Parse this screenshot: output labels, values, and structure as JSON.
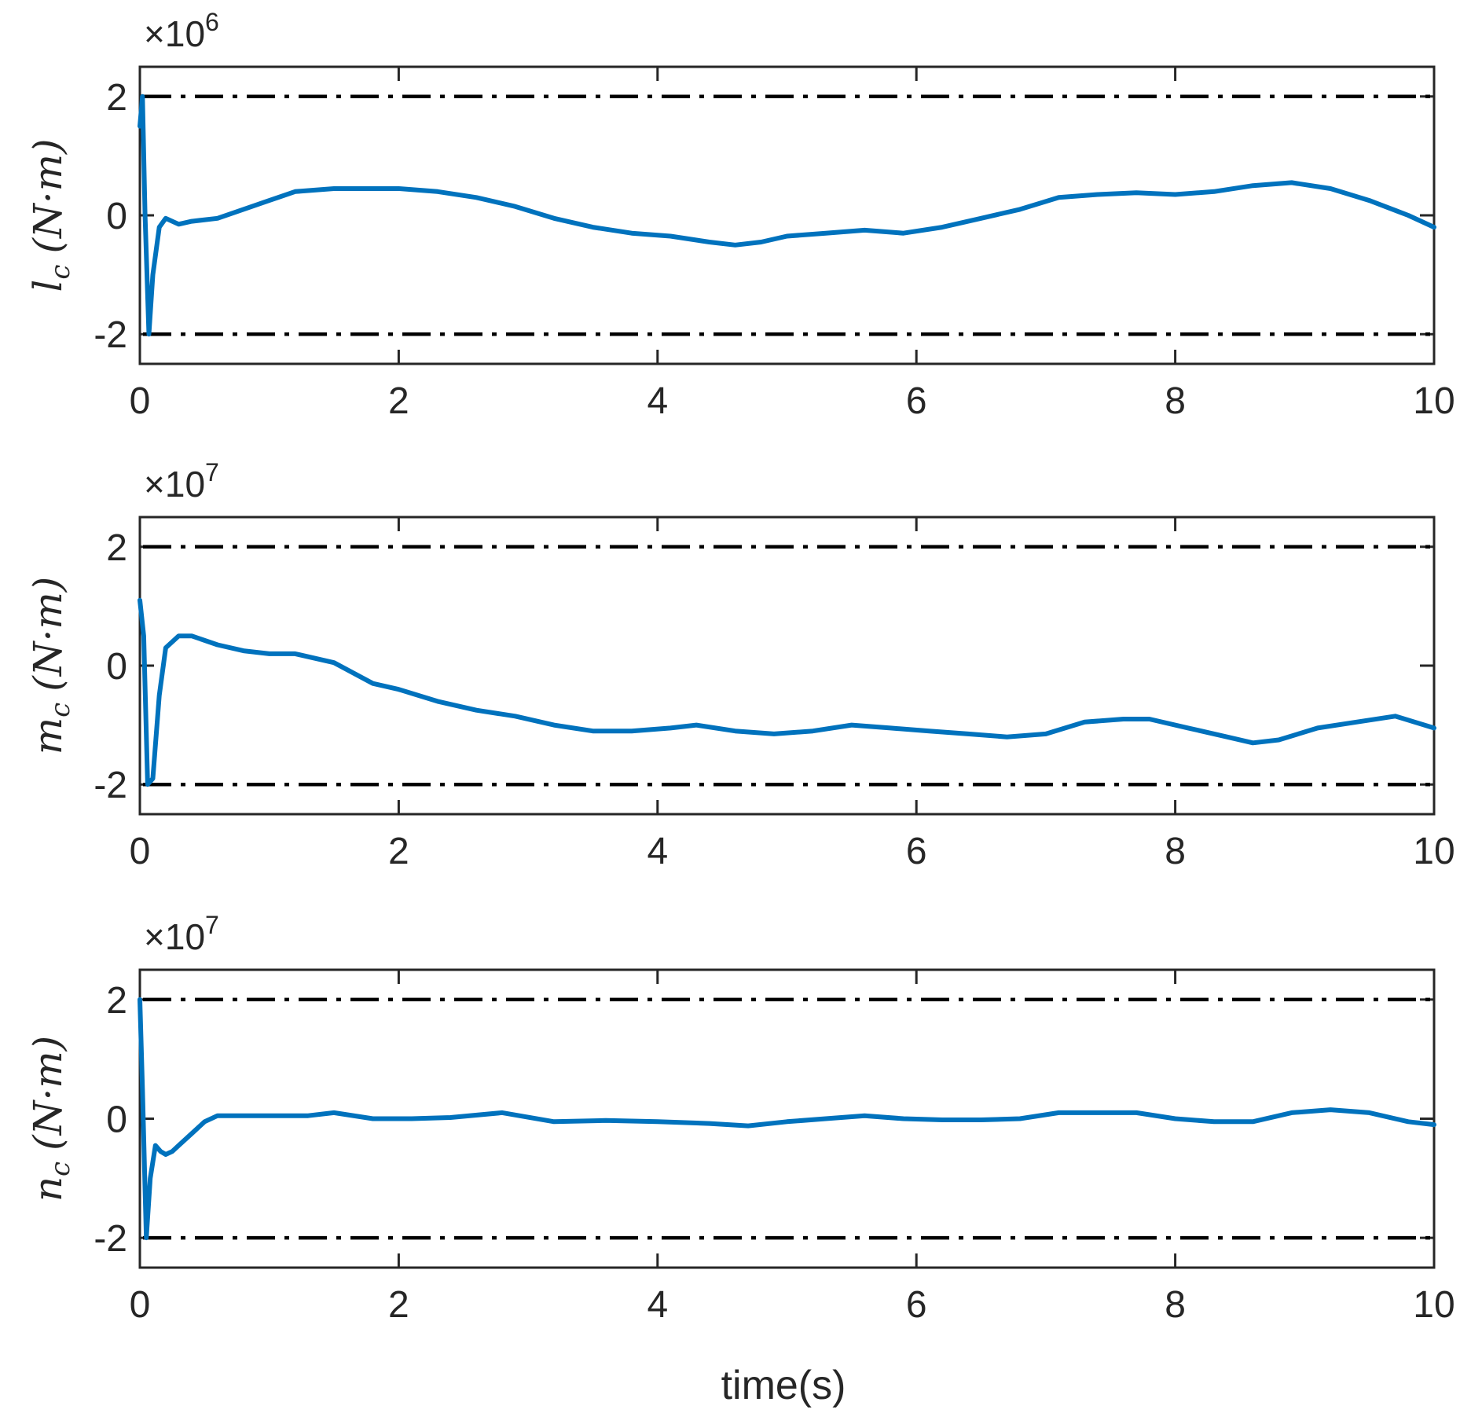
{
  "figure": {
    "xlabel": "time(s)"
  },
  "colors": {
    "series": "#0072bd",
    "limit": "#000000",
    "axis": "#262626"
  },
  "chart_data": [
    {
      "type": "line",
      "title": "",
      "ylabel": {
        "symbol": "l",
        "sub": "c",
        "units": "(N·m)"
      },
      "multiplier": {
        "base": "×10",
        "exp": "6"
      },
      "xlim": [
        0,
        10
      ],
      "ylim": [
        -2.5,
        2.5
      ],
      "xticks": [
        0,
        2,
        4,
        6,
        8,
        10
      ],
      "xtick_labels": [
        "0",
        "2",
        "4",
        "6",
        "8",
        "10"
      ],
      "yticks": [
        -2,
        0,
        2
      ],
      "ytick_labels": [
        "-2",
        "0",
        "2"
      ],
      "limits": [
        {
          "name": "upper-limit",
          "y": 2
        },
        {
          "name": "lower-limit",
          "y": -2
        }
      ],
      "series": [
        {
          "name": "l_c",
          "x": [
            0,
            0.02,
            0.04,
            0.07,
            0.1,
            0.15,
            0.2,
            0.3,
            0.4,
            0.6,
            0.8,
            1.0,
            1.2,
            1.5,
            1.8,
            2.0,
            2.3,
            2.6,
            2.9,
            3.2,
            3.5,
            3.8,
            4.1,
            4.4,
            4.6,
            4.8,
            5.0,
            5.3,
            5.6,
            5.9,
            6.2,
            6.5,
            6.8,
            7.1,
            7.4,
            7.7,
            8.0,
            8.3,
            8.6,
            8.9,
            9.2,
            9.5,
            9.8,
            10.0
          ],
          "values": [
            1.5,
            2.0,
            0.0,
            -2.0,
            -1.0,
            -0.2,
            -0.05,
            -0.15,
            -0.1,
            -0.05,
            0.1,
            0.25,
            0.4,
            0.45,
            0.45,
            0.45,
            0.4,
            0.3,
            0.15,
            -0.05,
            -0.2,
            -0.3,
            -0.35,
            -0.45,
            -0.5,
            -0.45,
            -0.35,
            -0.3,
            -0.25,
            -0.3,
            -0.2,
            -0.05,
            0.1,
            0.3,
            0.35,
            0.38,
            0.35,
            0.4,
            0.5,
            0.55,
            0.45,
            0.25,
            0.0,
            -0.2
          ]
        }
      ]
    },
    {
      "type": "line",
      "title": "",
      "ylabel": {
        "symbol": "m",
        "sub": "c",
        "units": "(N·m)"
      },
      "multiplier": {
        "base": "×10",
        "exp": "7"
      },
      "xlim": [
        0,
        10
      ],
      "ylim": [
        -2.5,
        2.5
      ],
      "xticks": [
        0,
        2,
        4,
        6,
        8,
        10
      ],
      "xtick_labels": [
        "0",
        "2",
        "4",
        "6",
        "8",
        "10"
      ],
      "yticks": [
        -2,
        0,
        2
      ],
      "ytick_labels": [
        "-2",
        "0",
        "2"
      ],
      "limits": [
        {
          "name": "upper-limit",
          "y": 2
        },
        {
          "name": "lower-limit",
          "y": -2
        }
      ],
      "series": [
        {
          "name": "m_c",
          "x": [
            0,
            0.03,
            0.06,
            0.1,
            0.15,
            0.2,
            0.3,
            0.4,
            0.6,
            0.8,
            1.0,
            1.2,
            1.5,
            1.8,
            2.0,
            2.3,
            2.6,
            2.9,
            3.2,
            3.5,
            3.8,
            4.1,
            4.3,
            4.6,
            4.9,
            5.2,
            5.5,
            5.8,
            6.1,
            6.4,
            6.7,
            7.0,
            7.3,
            7.6,
            7.8,
            8.1,
            8.4,
            8.6,
            8.8,
            9.1,
            9.4,
            9.7,
            10.0
          ],
          "values": [
            1.1,
            0.5,
            -2.0,
            -1.9,
            -0.5,
            0.3,
            0.5,
            0.5,
            0.35,
            0.25,
            0.2,
            0.2,
            0.05,
            -0.3,
            -0.4,
            -0.6,
            -0.75,
            -0.85,
            -1.0,
            -1.1,
            -1.1,
            -1.05,
            -1.0,
            -1.1,
            -1.15,
            -1.1,
            -1.0,
            -1.05,
            -1.1,
            -1.15,
            -1.2,
            -1.15,
            -0.95,
            -0.9,
            -0.9,
            -1.05,
            -1.2,
            -1.3,
            -1.25,
            -1.05,
            -0.95,
            -0.85,
            -1.05
          ]
        }
      ]
    },
    {
      "type": "line",
      "title": "",
      "ylabel": {
        "symbol": "n",
        "sub": "c",
        "units": "(N·m)"
      },
      "multiplier": {
        "base": "×10",
        "exp": "7"
      },
      "xlim": [
        0,
        10
      ],
      "ylim": [
        -2.5,
        2.5
      ],
      "xticks": [
        0,
        2,
        4,
        6,
        8,
        10
      ],
      "xtick_labels": [
        "0",
        "2",
        "4",
        "6",
        "8",
        "10"
      ],
      "yticks": [
        -2,
        0,
        2
      ],
      "ytick_labels": [
        "-2",
        "0",
        "2"
      ],
      "limits": [
        {
          "name": "upper-limit",
          "y": 2
        },
        {
          "name": "lower-limit",
          "y": -2
        }
      ],
      "series": [
        {
          "name": "n_c",
          "x": [
            0,
            0.02,
            0.05,
            0.08,
            0.12,
            0.16,
            0.2,
            0.25,
            0.3,
            0.4,
            0.5,
            0.6,
            0.8,
            1.0,
            1.3,
            1.5,
            1.8,
            2.1,
            2.4,
            2.8,
            3.2,
            3.6,
            4.0,
            4.4,
            4.7,
            5.0,
            5.3,
            5.6,
            5.9,
            6.2,
            6.5,
            6.8,
            7.1,
            7.4,
            7.7,
            8.0,
            8.3,
            8.6,
            8.9,
            9.2,
            9.5,
            9.8,
            10.0
          ],
          "values": [
            2.0,
            0.5,
            -2.0,
            -1.0,
            -0.45,
            -0.55,
            -0.6,
            -0.55,
            -0.45,
            -0.25,
            -0.05,
            0.05,
            0.05,
            0.05,
            0.05,
            0.1,
            0.0,
            0.0,
            0.02,
            0.1,
            -0.05,
            -0.03,
            -0.05,
            -0.08,
            -0.12,
            -0.05,
            0.0,
            0.05,
            0.0,
            -0.02,
            -0.02,
            0.0,
            0.1,
            0.1,
            0.1,
            0.0,
            -0.05,
            -0.05,
            0.1,
            0.15,
            0.1,
            -0.05,
            -0.1
          ]
        }
      ]
    }
  ]
}
